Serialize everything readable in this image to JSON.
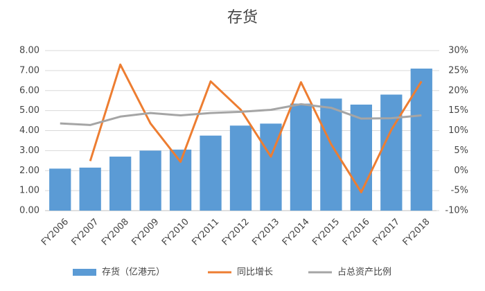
{
  "chart_data": {
    "type": "bar-line",
    "title": "存货",
    "categories": [
      "FY2006",
      "FY2007",
      "FY2008",
      "FY2009",
      "FY2010",
      "FY2011",
      "FY2012",
      "FY2013",
      "FY2014",
      "FY2015",
      "FY2016",
      "FY2017",
      "FY2018"
    ],
    "series": [
      {
        "name": "存货（亿港元）",
        "type": "bar",
        "color": "#5b9bd5",
        "values": [
          2.1,
          2.15,
          2.7,
          3.0,
          3.05,
          3.75,
          4.25,
          4.35,
          5.35,
          5.6,
          5.3,
          5.8,
          7.1
        ]
      },
      {
        "name": "同比增长",
        "type": "line",
        "axis": "y2",
        "color": "#ed7d31",
        "values": [
          null,
          2.4,
          26.5,
          11.8,
          2.2,
          22.3,
          15.2,
          3.5,
          22.1,
          6.6,
          -5.4,
          10.2,
          22.3
        ]
      },
      {
        "name": "占总资产比例",
        "type": "line",
        "axis": "y2",
        "color": "#a5a5a5",
        "values": [
          11.8,
          11.4,
          13.5,
          14.4,
          13.8,
          14.4,
          14.7,
          15.2,
          16.6,
          15.7,
          13.0,
          13.1,
          13.8
        ]
      }
    ],
    "ylim": [
      0,
      8
    ],
    "yticks": [
      {
        "value": 0,
        "label": "0.00"
      },
      {
        "value": 1,
        "label": "1.00"
      },
      {
        "value": 2,
        "label": "2.00"
      },
      {
        "value": 3,
        "label": "3.00"
      },
      {
        "value": 4,
        "label": "4.00"
      },
      {
        "value": 5,
        "label": "5.00"
      },
      {
        "value": 6,
        "label": "6.00"
      },
      {
        "value": 7,
        "label": "7.00"
      },
      {
        "value": 8,
        "label": "8.00"
      }
    ],
    "y2lim": [
      -10,
      30
    ],
    "y2ticks": [
      {
        "value": -10,
        "label": "-10%"
      },
      {
        "value": -5,
        "label": "-5%"
      },
      {
        "value": 0,
        "label": "0%"
      },
      {
        "value": 5,
        "label": "5%"
      },
      {
        "value": 10,
        "label": "10%"
      },
      {
        "value": 15,
        "label": "15%"
      },
      {
        "value": 20,
        "label": "20%"
      },
      {
        "value": 25,
        "label": "25%"
      },
      {
        "value": 30,
        "label": "30%"
      }
    ],
    "grid": true
  }
}
